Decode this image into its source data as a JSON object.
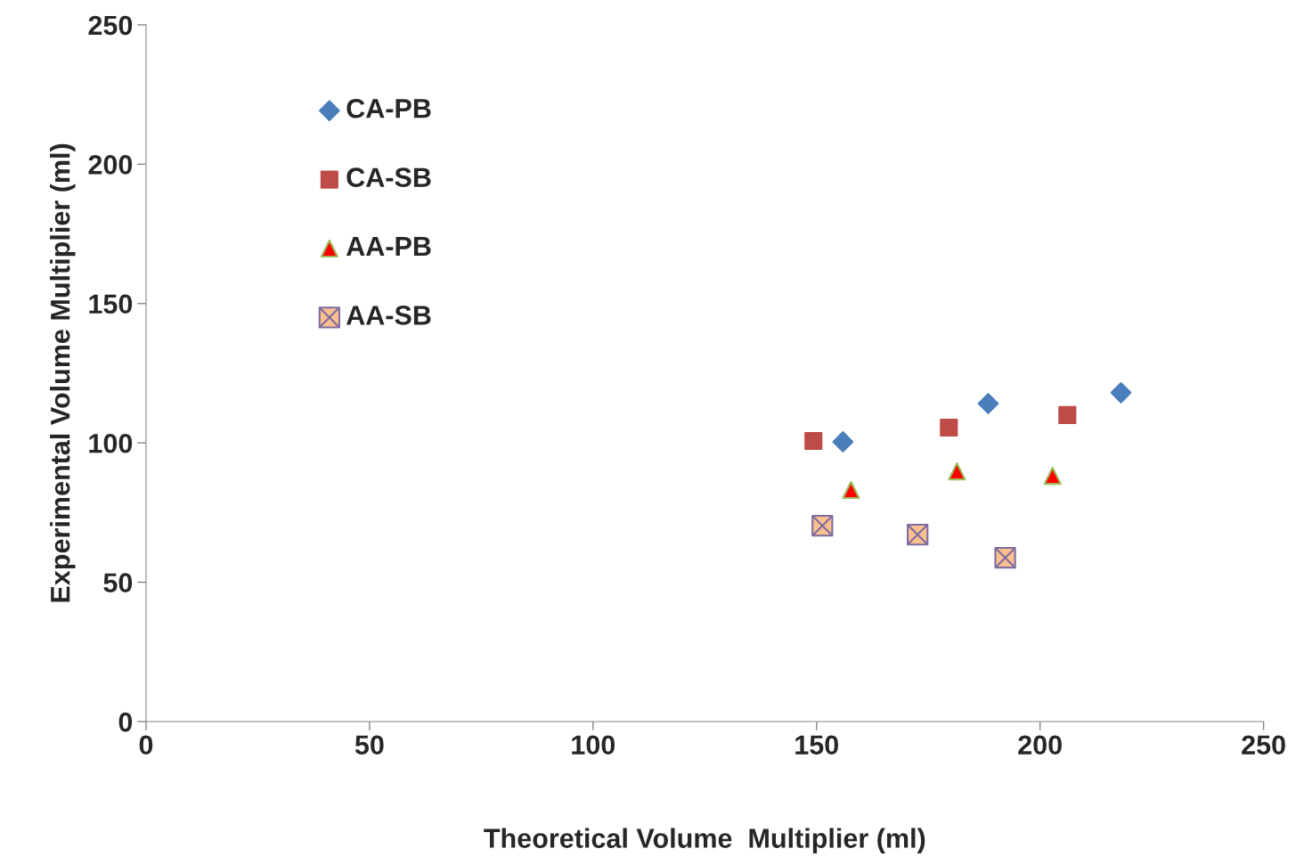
{
  "chart_data": {
    "type": "scatter",
    "xlabel": "Theoretical Volume  Multiplier (ml)",
    "ylabel": "Experimental Volume Multiplier (ml)",
    "xlim": [
      0,
      250
    ],
    "ylim": [
      0,
      250
    ],
    "xticks": [
      0,
      50,
      100,
      150,
      200,
      250
    ],
    "yticks": [
      0,
      50,
      100,
      150,
      200,
      250
    ],
    "grid": false,
    "legend": "top left",
    "series": [
      {
        "name": "CA-PB",
        "color": "#4a7ebb",
        "marker": "diamond",
        "x": [
          155.9,
          188.4,
          218.1
        ],
        "values": [
          100.4,
          114.1,
          118.0
        ]
      },
      {
        "name": "CA-SB",
        "color": "#be4b48",
        "marker": "square",
        "x": [
          149.3,
          179.6,
          206.1
        ],
        "values": [
          100.7,
          105.5,
          110.0
        ]
      },
      {
        "name": "AA-PB",
        "color": "#ff0000",
        "marker": "triangle",
        "x": [
          157.7,
          181.4,
          202.8
        ],
        "values": [
          83.1,
          89.8,
          88.2
        ]
      },
      {
        "name": "AA-SB",
        "color": "#fac090",
        "marker": "cross",
        "x": [
          151.3,
          172.6,
          192.2
        ],
        "values": [
          70.3,
          67.1,
          58.8
        ]
      }
    ]
  }
}
